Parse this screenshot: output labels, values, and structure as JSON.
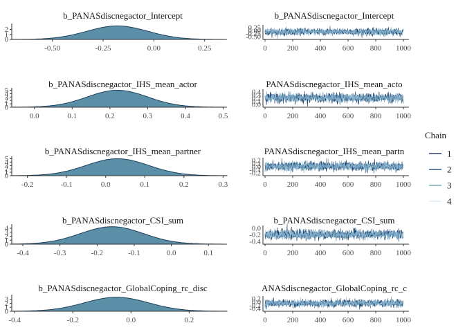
{
  "chart_data": {
    "type": "mcmc_combo",
    "legend": {
      "title": "Chain",
      "placement": "right",
      "entries": [
        "1",
        "2",
        "3",
        "4"
      ],
      "colors": [
        "#011f4b",
        "#03396c",
        "#6497b1",
        "#d6e6f2"
      ]
    },
    "colors": {
      "density_fill": "#5b8fa8",
      "density_line": "#1d3f5a",
      "trace_fill": "#8fb9d6"
    },
    "iterations": 1000,
    "panels": [
      {
        "parameter": "b_PANASdiscnegactor_Intercept",
        "trace_title": "b_PANASdiscnegactor_Intercept",
        "density": {
          "type": "area",
          "xlim": [
            -0.7,
            0.36
          ],
          "xticks": [
            -0.5,
            -0.25,
            0.0,
            0.25
          ],
          "xtick_labels": [
            "-0.50",
            "-0.25",
            "0.00",
            "0.25"
          ],
          "ylim": [
            0,
            2.9
          ],
          "yticks": [
            0,
            1,
            2
          ],
          "ytick_labels": [
            "0",
            "1",
            "2"
          ],
          "mean": -0.18,
          "sd": 0.15,
          "peak": 2.7
        },
        "trace": {
          "type": "line",
          "xlim": [
            0,
            1000
          ],
          "xticks": [
            0,
            200,
            400,
            600,
            800,
            1000
          ],
          "ytick_labels": [
            "0.25",
            "0.00",
            "-0.25",
            "-0.50"
          ],
          "mean": -0.18,
          "sd": 0.15
        }
      },
      {
        "parameter": "b_PANASdiscnegactor_IHS_mean_actor",
        "trace_title": "PANASdiscnegactor_IHS_mean_acto",
        "density": {
          "type": "area",
          "xlim": [
            -0.06,
            0.51
          ],
          "xticks": [
            0.0,
            0.1,
            0.2,
            0.3,
            0.4,
            0.5
          ],
          "xtick_labels": [
            "0.0",
            "0.1",
            "0.2",
            "0.3",
            "0.4",
            "0.5"
          ],
          "ylim": [
            0,
            5.3
          ],
          "yticks": [
            0,
            1,
            2,
            3,
            4,
            5
          ],
          "ytick_labels": [
            "0",
            "1",
            "2",
            "3",
            "4",
            "5"
          ],
          "mean": 0.22,
          "sd": 0.08,
          "peak": 5.0
        },
        "trace": {
          "type": "line",
          "xlim": [
            0,
            1000
          ],
          "xticks": [
            0,
            200,
            400,
            600,
            800,
            1000
          ],
          "ytick_labels": [
            "0.4",
            "0.3",
            "0.2",
            "0.1",
            "0.0"
          ],
          "mean": 0.22,
          "sd": 0.08
        }
      },
      {
        "parameter": "b_PANASdiscnegactor_IHS_mean_partner",
        "trace_title": "PANASdiscnegactor_IHS_mean_partn",
        "density": {
          "type": "area",
          "xlim": [
            -0.24,
            0.31
          ],
          "xticks": [
            -0.2,
            -0.1,
            0.0,
            0.1,
            0.2,
            0.3
          ],
          "xtick_labels": [
            "-0.2",
            "-0.1",
            "0.0",
            "0.1",
            "0.2",
            "0.3"
          ],
          "ylim": [
            0,
            5.3
          ],
          "yticks": [
            0,
            1,
            2,
            3,
            4,
            5
          ],
          "ytick_labels": [
            "0",
            "1",
            "2",
            "3",
            "4",
            "5"
          ],
          "mean": 0.03,
          "sd": 0.08,
          "peak": 5.0
        },
        "trace": {
          "type": "line",
          "xlim": [
            0,
            1000
          ],
          "xticks": [
            0,
            200,
            400,
            600,
            800,
            1000
          ],
          "ytick_labels": [
            "0.2",
            "0.1",
            "0.0",
            "-0.1",
            "-0.2"
          ],
          "mean": 0.03,
          "sd": 0.08
        }
      },
      {
        "parameter": "b_PANASdiscnegactor_CSI_sum",
        "trace_title": "b_PANASdiscnegactor_CSI_sum",
        "density": {
          "type": "area",
          "xlim": [
            -0.43,
            0.15
          ],
          "xticks": [
            -0.4,
            -0.3,
            -0.2,
            -0.1,
            0.0,
            0.1
          ],
          "xtick_labels": [
            "-0.4",
            "-0.3",
            "-0.2",
            "-0.1",
            "0.0",
            "0.1"
          ],
          "ylim": [
            0,
            4.7
          ],
          "yticks": [
            0,
            1,
            2,
            3,
            4
          ],
          "ytick_labels": [
            "0",
            "1",
            "2",
            "3",
            "4"
          ],
          "mean": -0.16,
          "sd": 0.085,
          "peak": 4.4
        },
        "trace": {
          "type": "line",
          "xlim": [
            0,
            1000
          ],
          "xticks": [
            0,
            200,
            400,
            600,
            800,
            1000
          ],
          "ytick_labels": [
            "0.0",
            "-0.2",
            "-0.4"
          ],
          "mean": -0.16,
          "sd": 0.085
        }
      },
      {
        "parameter": "b_PANASdiscnegactor_GlobalCoping_rc_disc",
        "trace_title": "ANASdiscnegactor_GlobalCoping_rc_c",
        "density": {
          "type": "area",
          "xlim": [
            -0.41,
            0.33
          ],
          "xticks": [
            -0.4,
            -0.2,
            0.0,
            0.2
          ],
          "xtick_labels": [
            "-0.4",
            "-0.2",
            "0.0",
            "0.2"
          ],
          "ylim": [
            0,
            3.8
          ],
          "yticks": [
            0,
            1,
            2,
            3
          ],
          "ytick_labels": [
            "0",
            "1",
            "2",
            "3"
          ],
          "mean": -0.05,
          "sd": 0.11,
          "peak": 3.5
        },
        "trace": {
          "type": "line",
          "xlim": [
            0,
            1000
          ],
          "xticks": [
            0,
            200,
            400,
            600,
            800,
            1000
          ],
          "ytick_labels": [
            "0.2",
            "0.0",
            "-0.2",
            "-0.4"
          ],
          "mean": -0.05,
          "sd": 0.11
        }
      }
    ]
  }
}
